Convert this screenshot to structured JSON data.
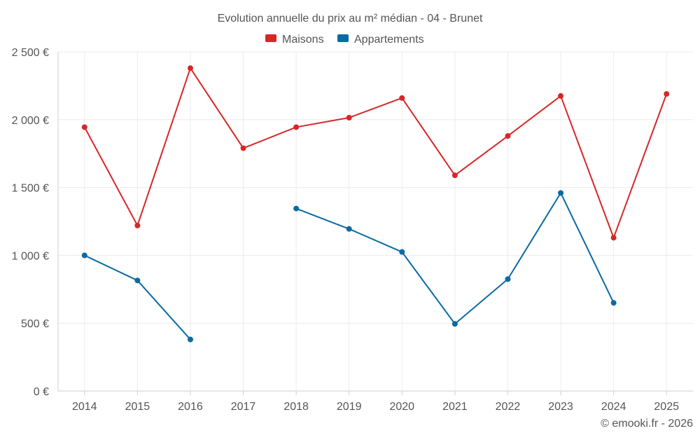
{
  "chart_data": {
    "type": "line",
    "title": "Evolution annuelle du prix au m² médian - 04 - Brunet",
    "categories": [
      "2014",
      "2015",
      "2016",
      "2017",
      "2018",
      "2019",
      "2020",
      "2021",
      "2022",
      "2023",
      "2024",
      "2025"
    ],
    "ylim": [
      0,
      2500
    ],
    "yticks": [
      0,
      500,
      1000,
      1500,
      2000,
      2500
    ],
    "ytick_labels": [
      "0 €",
      "500 €",
      "1 000 €",
      "1 500 €",
      "2 000 €",
      "2 500 €"
    ],
    "grid": true,
    "legend_position": "top-center",
    "series": [
      {
        "name": "Maisons",
        "color": "#d62728",
        "values": [
          1945,
          1220,
          2380,
          1790,
          1945,
          2015,
          2160,
          1590,
          1880,
          2175,
          1130,
          2190
        ]
      },
      {
        "name": "Appartements",
        "color": "#0a6aa1",
        "values": [
          1000,
          815,
          380,
          null,
          1345,
          1195,
          1025,
          495,
          825,
          1460,
          650,
          null
        ]
      }
    ]
  },
  "credit": "© emooki.fr - 2026"
}
